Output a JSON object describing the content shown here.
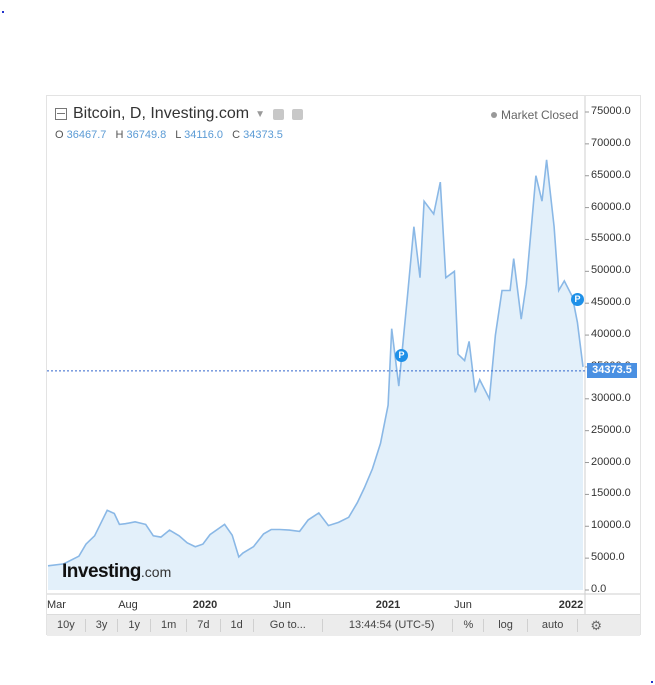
{
  "header": {
    "title": "Bitcoin, D, Investing.com",
    "market_status": "Market Closed"
  },
  "ohlc": {
    "o_label": "O",
    "o_value": "36467.7",
    "h_label": "H",
    "h_value": "36749.8",
    "l_label": "L",
    "l_value": "34116.0",
    "c_label": "C",
    "c_value": "34373.5"
  },
  "current_price_label": "34373.5",
  "logo": {
    "main": "Investing",
    "suffix": ".com"
  },
  "toolbar": {
    "buttons": [
      "10y",
      "3y",
      "1y",
      "1m",
      "7d",
      "1d",
      "Go to...",
      "13:44:54 (UTC-5)",
      "%",
      "log",
      "auto"
    ]
  },
  "markers": [
    "P",
    "P"
  ],
  "colors": {
    "line": "#8ab8e6",
    "fill": "#e3f0fa",
    "accent": "#4a90e2",
    "marker": "#1e90e8"
  },
  "chart_data": {
    "type": "area",
    "title": "Bitcoin, D, Investing.com",
    "x_tick_labels": [
      "Mar",
      "Aug",
      "2020",
      "Jun",
      "2021",
      "Jun",
      "2022"
    ],
    "y_tick_labels": [
      "75000.0",
      "70000.0",
      "65000.0",
      "60000.0",
      "55000.0",
      "50000.0",
      "45000.0",
      "40000.0",
      "35000.0",
      "30000.0",
      "25000.0",
      "20000.0",
      "15000.0",
      "10000.0",
      "5000.0",
      "0.0"
    ],
    "ylim": [
      0,
      75000
    ],
    "grid": false,
    "current_value": 34373.5,
    "series": [
      {
        "x": [
          "2019-03-01",
          "2019-04-01",
          "2019-05-01",
          "2019-05-15",
          "2019-06-01",
          "2019-06-26",
          "2019-07-10",
          "2019-07-20",
          "2019-08-01",
          "2019-08-20",
          "2019-09-10",
          "2019-09-25",
          "2019-10-10",
          "2019-10-27",
          "2019-11-15",
          "2019-12-01",
          "2019-12-17",
          "2020-01-01",
          "2020-01-15",
          "2020-02-13",
          "2020-02-28",
          "2020-03-12",
          "2020-03-20",
          "2020-04-10",
          "2020-04-30",
          "2020-05-15",
          "2020-06-01",
          "2020-06-20",
          "2020-07-10",
          "2020-07-27",
          "2020-08-17",
          "2020-09-05",
          "2020-09-25",
          "2020-10-15",
          "2020-11-01",
          "2020-11-15",
          "2020-12-01",
          "2020-12-17",
          "2021-01-01",
          "2021-01-08",
          "2021-01-22",
          "2021-02-08",
          "2021-02-21",
          "2021-03-05",
          "2021-03-13",
          "2021-04-01",
          "2021-04-14",
          "2021-04-25",
          "2021-05-12",
          "2021-05-19",
          "2021-06-01",
          "2021-06-10",
          "2021-06-22",
          "2021-07-01",
          "2021-07-20",
          "2021-08-01",
          "2021-08-14",
          "2021-08-30",
          "2021-09-06",
          "2021-09-21",
          "2021-10-01",
          "2021-10-20",
          "2021-11-01",
          "2021-11-10",
          "2021-11-25",
          "2021-12-04",
          "2021-12-15",
          "2021-12-31",
          "2022-01-10",
          "2022-01-21"
        ],
        "y": [
          3800,
          4100,
          5300,
          7200,
          8500,
          12500,
          12000,
          10300,
          10400,
          10700,
          10300,
          8500,
          8300,
          9400,
          8500,
          7400,
          6800,
          7200,
          8700,
          10300,
          8600,
          5200,
          5800,
          6800,
          8800,
          9500,
          9500,
          9400,
          9200,
          11000,
          12100,
          10100,
          10600,
          11400,
          13700,
          16000,
          19000,
          23000,
          29000,
          41000,
          32000,
          46000,
          57000,
          49000,
          61000,
          59000,
          64000,
          49000,
          50000,
          37000,
          36000,
          39000,
          31000,
          33000,
          30000,
          40000,
          47000,
          47000,
          52000,
          42500,
          48000,
          65000,
          61000,
          67500,
          57000,
          47000,
          48500,
          46000,
          42000,
          35000
        ]
      }
    ]
  }
}
